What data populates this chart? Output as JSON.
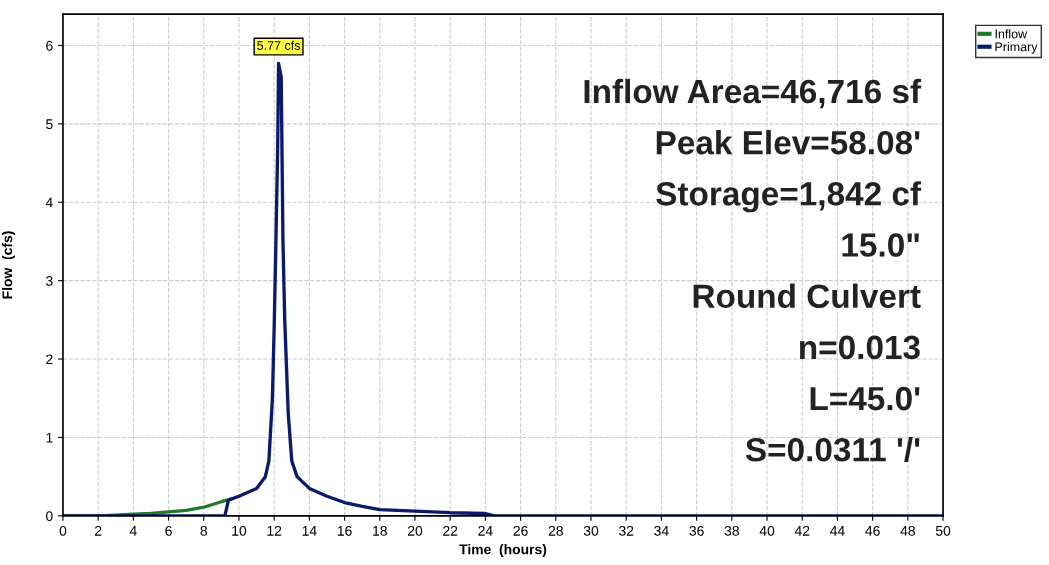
{
  "chart_data": {
    "type": "line",
    "xlabel": "Time  (hours)",
    "ylabel": "Flow  (cfs)",
    "xlim": [
      0,
      50
    ],
    "xticks": [
      0,
      2,
      4,
      6,
      8,
      10,
      12,
      14,
      16,
      18,
      20,
      22,
      24,
      26,
      28,
      30,
      32,
      34,
      36,
      38,
      40,
      42,
      44,
      46,
      48,
      50
    ],
    "ylim": [
      0,
      6.4
    ],
    "yticks": [
      0,
      1,
      2,
      3,
      4,
      5,
      6
    ],
    "grid": true,
    "legend": "top right",
    "marker": "none",
    "line_style": "solid",
    "series": [
      {
        "name": "Inflow",
        "color": "#1f7a2e",
        "x": [
          0,
          2,
          3,
          4,
          5,
          6,
          7,
          8,
          9,
          9.5
        ],
        "values": [
          0,
          0,
          0.01,
          0.02,
          0.03,
          0.05,
          0.07,
          0.11,
          0.18,
          0.21
        ]
      },
      {
        "name": "Primary",
        "color": "#0b1a6b",
        "x": [
          0,
          9.2,
          9.4,
          10,
          11,
          11.5,
          11.7,
          11.9,
          12.0,
          12.1,
          12.2,
          12.25,
          12.4,
          12.5,
          12.6,
          12.8,
          13,
          13.3,
          14,
          15,
          16,
          17,
          18,
          20,
          22,
          24,
          24.5,
          50
        ],
        "values": [
          0,
          0,
          0.2,
          0.25,
          0.35,
          0.5,
          0.7,
          1.5,
          2.4,
          3.5,
          4.7,
          5.77,
          5.6,
          3.5,
          2.5,
          1.3,
          0.7,
          0.5,
          0.35,
          0.25,
          0.17,
          0.12,
          0.08,
          0.06,
          0.04,
          0.03,
          0,
          0
        ]
      }
    ],
    "annotations": [
      {
        "text": "5.77 cfs",
        "x": 12.25,
        "y": 5.77
      },
      "Inflow Area=46,716 sf",
      "Peak Elev=58.08'",
      "Storage=1,842 cf",
      "15.0\"",
      "Round Culvert",
      "n=0.013",
      "L=45.0'",
      "S=0.0311 '/'"
    ]
  }
}
